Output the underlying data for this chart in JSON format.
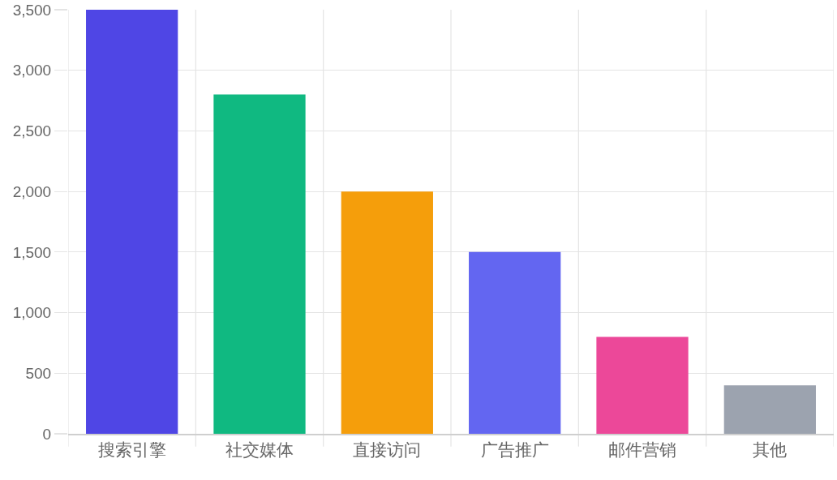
{
  "chart_data": {
    "type": "bar",
    "categories": [
      "搜索引擎",
      "社交媒体",
      "直接访问",
      "广告推广",
      "邮件营销",
      "其他"
    ],
    "values": [
      3500,
      2800,
      2000,
      1500,
      800,
      400
    ],
    "colors": [
      "#4f46e5",
      "#10b981",
      "#f59e0b",
      "#6366f1",
      "#ec4899",
      "#9ca3af"
    ],
    "ylim": [
      0,
      3500
    ],
    "yticks": [
      0,
      500,
      {
        "value": 1000,
        "label": "1,000"
      },
      {
        "value": 1500,
        "label": "1,500"
      },
      {
        "value": 2000,
        "label": "2,000"
      },
      {
        "value": 2500,
        "label": "2,500"
      },
      {
        "value": 3000,
        "label": "3,000"
      },
      {
        "value": 3500,
        "label": "3,500"
      }
    ],
    "grid": true
  }
}
